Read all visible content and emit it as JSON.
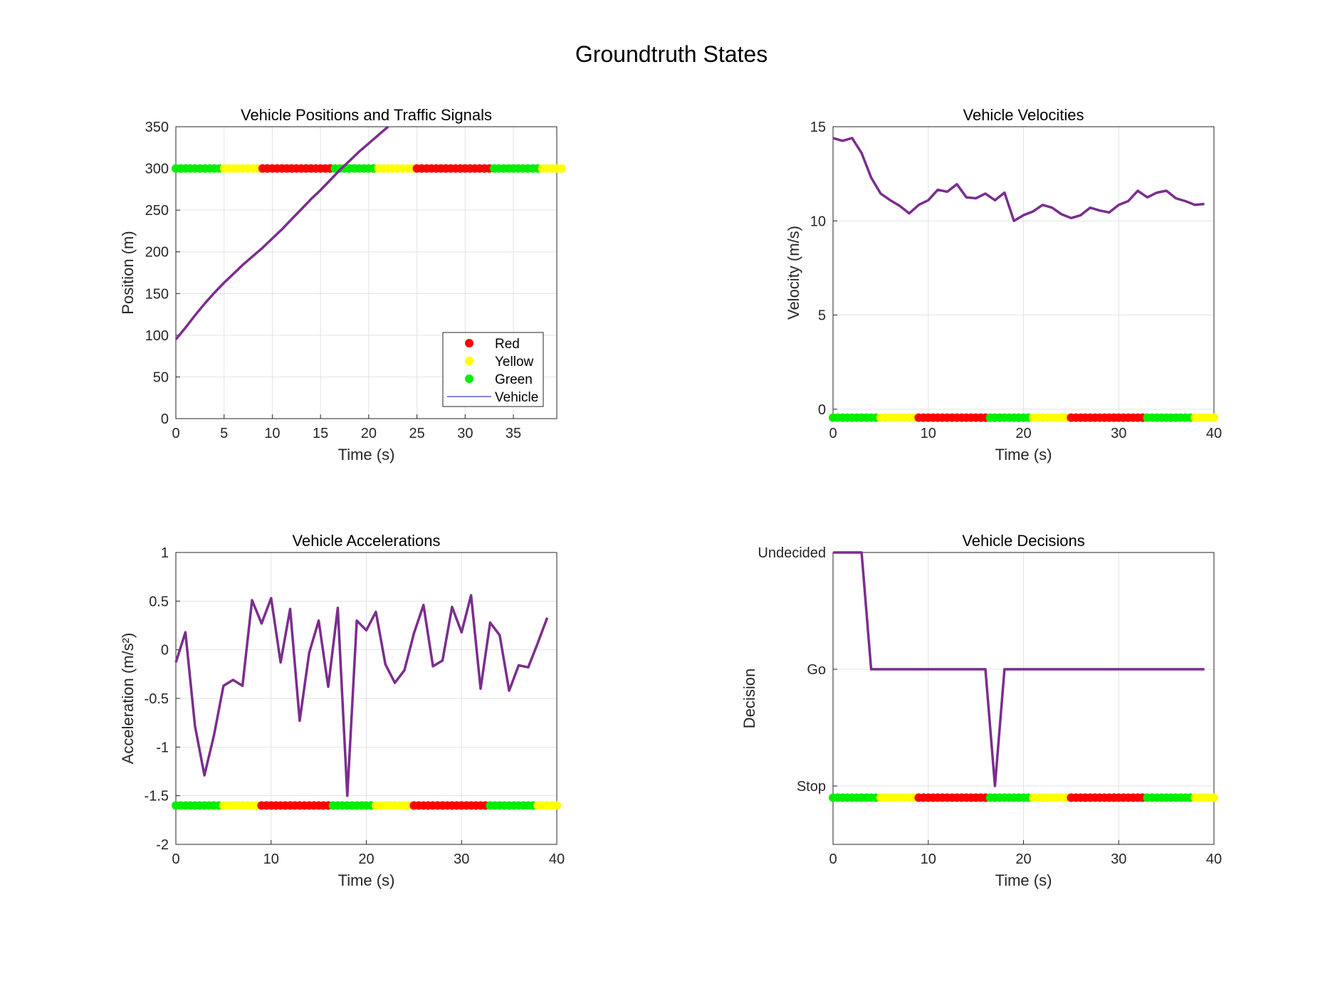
{
  "figure": {
    "title": "Groundtruth States"
  },
  "colors": {
    "vehicle_line": "#7B2D8E",
    "legend_vehicle": "#5B5BD6",
    "red": "#FF0000",
    "yellow": "#FFFF00",
    "green": "#00EE00"
  },
  "signal_timeline": {
    "t": [
      0,
      0.5,
      1,
      1.5,
      2,
      2.5,
      3,
      3.5,
      4,
      4.5,
      5,
      5.5,
      6,
      6.5,
      7,
      7.5,
      8,
      8.5,
      9,
      9.5,
      10,
      10.5,
      11,
      11.5,
      12,
      12.5,
      13,
      13.5,
      14,
      14.5,
      15,
      15.5,
      16,
      16.5,
      17,
      17.5,
      18,
      18.5,
      19,
      19.5,
      20,
      20.5,
      21,
      21.5,
      22,
      22.5,
      23,
      23.5,
      24,
      24.5,
      25,
      25.5,
      26,
      26.5,
      27,
      27.5,
      28,
      28.5,
      29,
      29.5,
      30,
      30.5,
      31,
      31.5,
      32,
      32.5,
      33,
      33.5,
      34,
      34.5,
      35,
      35.5,
      36,
      36.5,
      37,
      37.5,
      38,
      38.5,
      39,
      39.5,
      40
    ],
    "state": [
      "G",
      "G",
      "G",
      "G",
      "G",
      "G",
      "G",
      "G",
      "G",
      "G",
      "Y",
      "Y",
      "Y",
      "Y",
      "Y",
      "Y",
      "Y",
      "Y",
      "R",
      "R",
      "R",
      "R",
      "R",
      "R",
      "R",
      "R",
      "R",
      "R",
      "R",
      "R",
      "R",
      "R",
      "R",
      "G",
      "G",
      "G",
      "G",
      "G",
      "G",
      "G",
      "G",
      "G",
      "Y",
      "Y",
      "Y",
      "Y",
      "Y",
      "Y",
      "Y",
      "Y",
      "R",
      "R",
      "R",
      "R",
      "R",
      "R",
      "R",
      "R",
      "R",
      "R",
      "R",
      "R",
      "R",
      "R",
      "R",
      "R",
      "G",
      "G",
      "G",
      "G",
      "G",
      "G",
      "G",
      "G",
      "G",
      "G",
      "Y",
      "Y",
      "Y",
      "Y",
      "Y"
    ]
  },
  "chart_data": [
    {
      "type": "line",
      "title": "Vehicle Positions and Traffic Signals",
      "xlabel": "Time (s)",
      "ylabel": "Position (m)",
      "xlim": [
        0,
        39.5
      ],
      "ylim": [
        0,
        350
      ],
      "xticks": [
        "0",
        "5",
        "10",
        "15",
        "20",
        "25",
        "30",
        "35"
      ],
      "yticks": [
        "0",
        "50",
        "100",
        "150",
        "200",
        "250",
        "300",
        "350"
      ],
      "grid": true,
      "legend": {
        "placement": "bottom-right",
        "entries": [
          "Red",
          "Yellow",
          "Green",
          "Vehicle"
        ]
      },
      "signal_level": 300,
      "series": [
        {
          "name": "Vehicle",
          "x": [
            0,
            1,
            2,
            3,
            4,
            5,
            6,
            7,
            8,
            9,
            10,
            11,
            12,
            13,
            14,
            15,
            16,
            17,
            18,
            19,
            20,
            21,
            22
          ],
          "y": [
            95,
            109,
            124,
            138,
            151,
            163,
            174,
            185,
            195,
            205,
            216,
            227,
            239,
            251,
            263,
            274,
            286,
            298,
            309,
            320,
            330,
            340,
            350
          ]
        }
      ]
    },
    {
      "type": "line",
      "title": "Vehicle Velocities",
      "xlabel": "Time (s)",
      "ylabel": "Velocity (m/s)",
      "xlim": [
        0,
        40
      ],
      "ylim": [
        -0.5,
        15
      ],
      "xticks": [
        "0",
        "10",
        "20",
        "30",
        "40"
      ],
      "yticks": [
        "0",
        "5",
        "10",
        "15"
      ],
      "grid": true,
      "signal_level": -0.45,
      "series": [
        {
          "x": [
            0,
            1,
            2,
            3,
            4,
            5,
            6,
            7,
            8,
            9,
            10,
            11,
            12,
            13,
            14,
            15,
            16,
            17,
            18,
            19,
            20,
            21,
            22,
            23,
            24,
            25,
            26,
            27,
            28,
            29,
            30,
            31,
            32,
            33,
            34,
            35,
            36,
            37,
            38,
            39
          ],
          "y": [
            14.4,
            14.25,
            14.4,
            13.6,
            12.3,
            11.45,
            11.1,
            10.8,
            10.4,
            10.85,
            11.1,
            11.65,
            11.55,
            11.95,
            11.25,
            11.2,
            11.45,
            11.1,
            11.5,
            10,
            10.3,
            10.5,
            10.85,
            10.7,
            10.35,
            10.15,
            10.3,
            10.7,
            10.55,
            10.45,
            10.85,
            11.05,
            11.6,
            11.25,
            11.5,
            11.6,
            11.2,
            11.05,
            10.85,
            10.9
          ]
        }
      ]
    },
    {
      "type": "line",
      "title": "Vehicle Accelerations",
      "xlabel": "Time (s)",
      "ylabel": "Acceleration (m/s²)",
      "xlim": [
        0,
        40
      ],
      "ylim": [
        -2,
        1
      ],
      "xticks": [
        "0",
        "10",
        "20",
        "30",
        "40"
      ],
      "yticks": [
        "-2",
        "-1.5",
        "-1",
        "-0.5",
        "0",
        "0.5",
        "1"
      ],
      "grid": true,
      "signal_level": -1.6,
      "series": [
        {
          "x": [
            0,
            1,
            2,
            3,
            4,
            5,
            6,
            7,
            8,
            9,
            10,
            11,
            12,
            13,
            14,
            15,
            16,
            17,
            18,
            19,
            20,
            21,
            22,
            23,
            24,
            25,
            26,
            27,
            28,
            29,
            30,
            31,
            32,
            33,
            34,
            35,
            36,
            37,
            38,
            39
          ],
          "y": [
            -0.13,
            0.18,
            -0.78,
            -1.29,
            -0.88,
            -0.37,
            -0.31,
            -0.37,
            0.51,
            0.27,
            0.53,
            -0.13,
            0.42,
            -0.73,
            -0.03,
            0.3,
            -0.38,
            0.43,
            -1.5,
            0.3,
            0.2,
            0.39,
            -0.15,
            -0.34,
            -0.21,
            0.17,
            0.46,
            -0.17,
            -0.11,
            0.44,
            0.18,
            0.56,
            -0.4,
            0.28,
            0.15,
            -0.42,
            -0.16,
            -0.18,
            0.07,
            0.33
          ]
        }
      ]
    },
    {
      "type": "line",
      "title": "Vehicle Decisions",
      "xlabel": "Time (s)",
      "ylabel": "Decision",
      "xlim": [
        0,
        40
      ],
      "ylim": [
        -0.5,
        2
      ],
      "xticks": [
        "0",
        "10",
        "20",
        "30",
        "40"
      ],
      "yticks": [
        "Stop",
        "Go",
        "Undecided"
      ],
      "grid": true,
      "signal_level": -0.1,
      "series": [
        {
          "x": [
            0,
            1,
            2,
            3,
            4,
            5,
            6,
            7,
            8,
            9,
            10,
            11,
            12,
            13,
            14,
            15,
            16,
            17,
            18,
            19,
            20,
            21,
            22,
            23,
            24,
            25,
            26,
            27,
            28,
            29,
            30,
            31,
            32,
            33,
            34,
            35,
            36,
            37,
            38,
            39
          ],
          "y": [
            2,
            2,
            2,
            2,
            1,
            1,
            1,
            1,
            1,
            1,
            1,
            1,
            1,
            1,
            1,
            1,
            1,
            0,
            1,
            1,
            1,
            1,
            1,
            1,
            1,
            1,
            1,
            1,
            1,
            1,
            1,
            1,
            1,
            1,
            1,
            1,
            1,
            1,
            1,
            1
          ]
        }
      ]
    }
  ]
}
